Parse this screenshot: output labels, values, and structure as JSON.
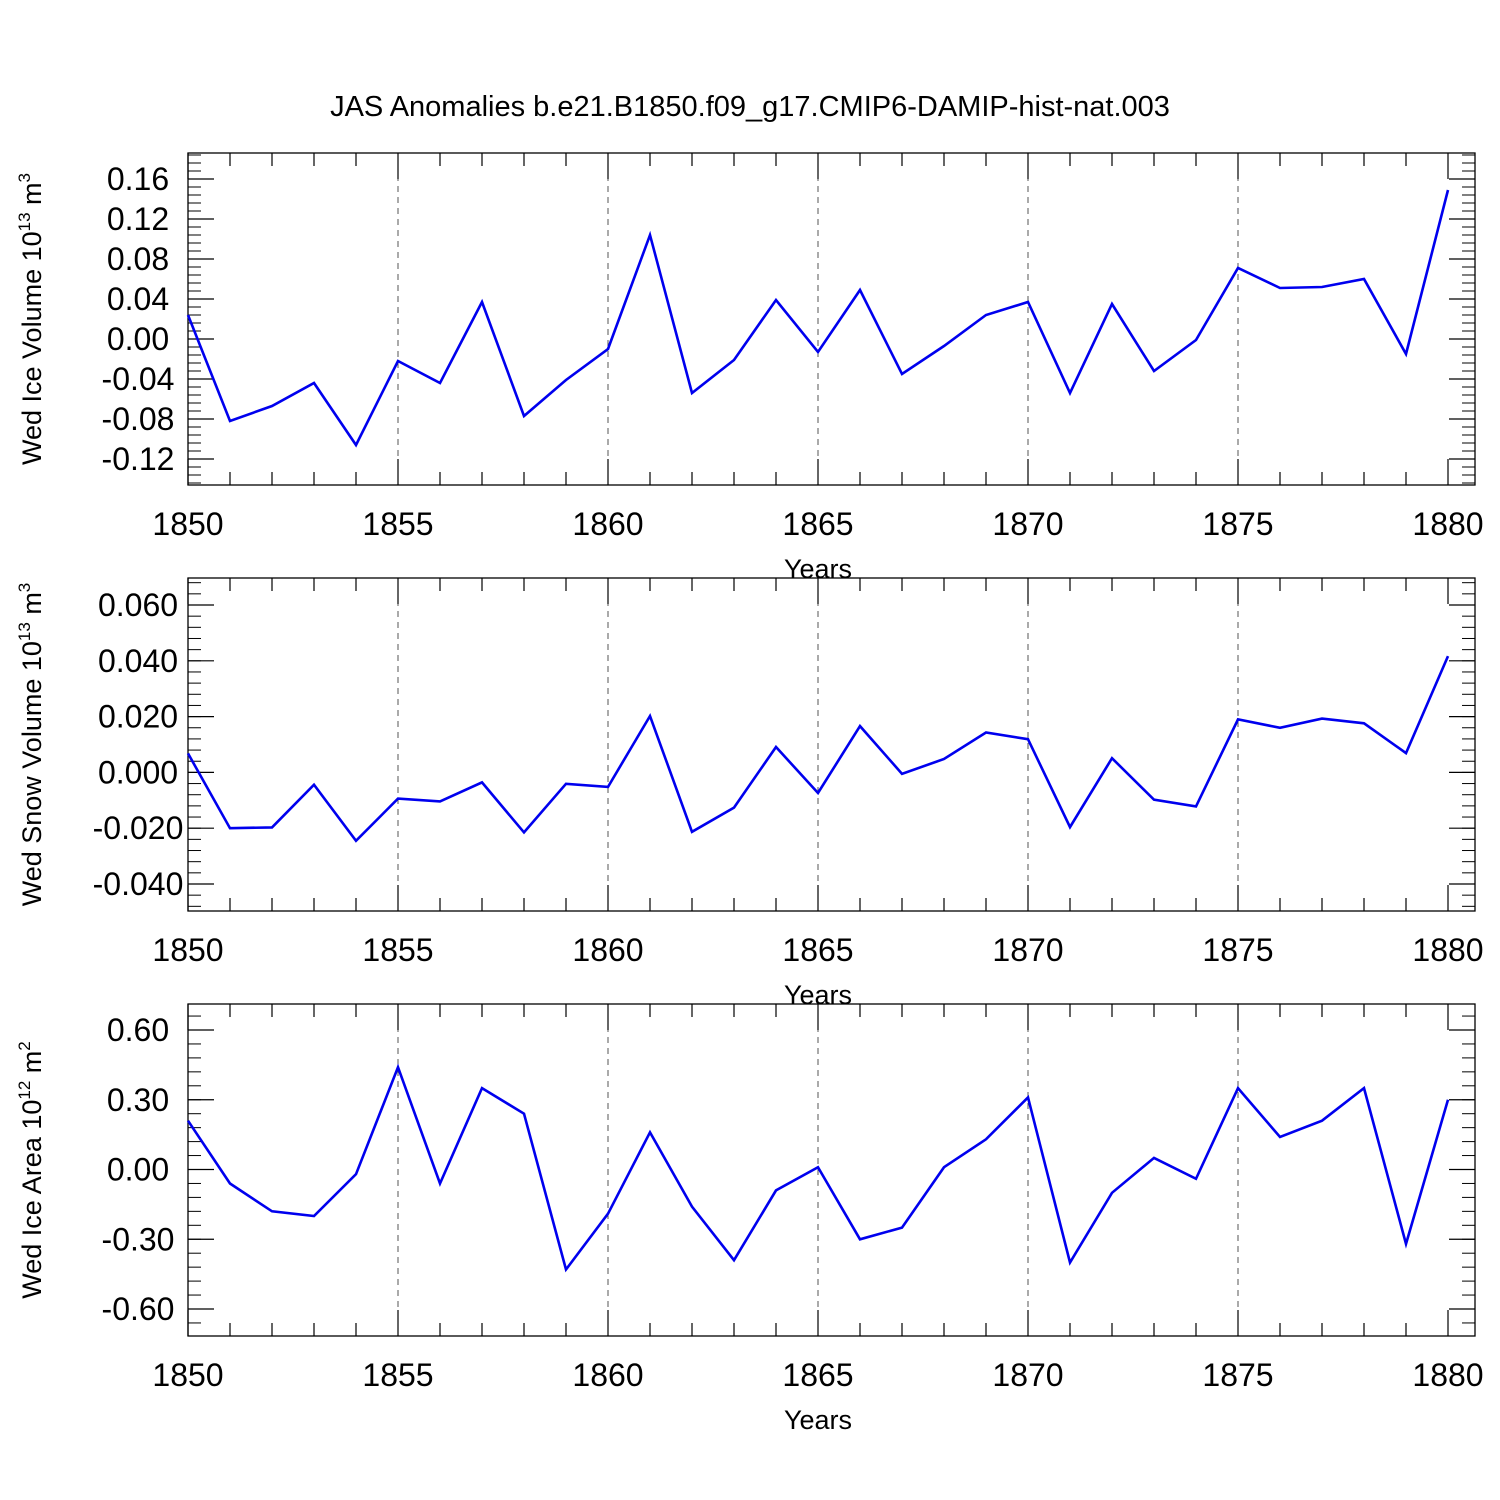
{
  "figure": {
    "title": "JAS Anomalies b.e21.B1850.f09_g17.CMIP6-DAMIP-hist-nat.003"
  },
  "colors": {
    "line": "#0000ee",
    "axes": "#000000"
  },
  "chart_data": [
    {
      "type": "line",
      "title": "",
      "xlabel": "Years",
      "ylabel": "Wed Ice Volume 10",
      "ylabel_exp": "13",
      "ylabel_unit": " m",
      "ylabel_unit_exp": "3",
      "xlim": [
        1850,
        1880
      ],
      "ylim": [
        -0.12,
        0.16
      ],
      "x_ticks": [
        1850,
        1855,
        1860,
        1865,
        1870,
        1875,
        1880
      ],
      "x_tick_labels": [
        "1850",
        "1855",
        "1860",
        "1865",
        "1870",
        "1875",
        "1880"
      ],
      "y_ticks": [
        -0.12,
        -0.08,
        -0.04,
        0.0,
        0.04,
        0.08,
        0.12,
        0.16
      ],
      "y_tick_labels": [
        "-0.12",
        "-0.08",
        "-0.04",
        "0.00",
        "0.04",
        "0.08",
        "0.12",
        "0.16"
      ],
      "grid": "vertical dashed at major x ticks",
      "legend": "none",
      "series": [
        {
          "x": [
            1850,
            1851,
            1852,
            1853,
            1854,
            1855,
            1856,
            1857,
            1858,
            1859,
            1860,
            1861,
            1862,
            1863,
            1864,
            1865,
            1866,
            1867,
            1868,
            1869,
            1870,
            1871,
            1872,
            1873,
            1874,
            1875,
            1876,
            1877,
            1878,
            1879,
            1880
          ],
          "values": [
            0.024,
            -0.082,
            -0.067,
            -0.044,
            -0.106,
            -0.022,
            -0.044,
            0.037,
            -0.077,
            -0.041,
            -0.01,
            0.104,
            -0.054,
            -0.021,
            0.039,
            -0.013,
            0.049,
            -0.035,
            -0.007,
            0.024,
            0.037,
            -0.054,
            0.035,
            -0.032,
            -0.001,
            0.071,
            0.051,
            0.052,
            0.06,
            -0.015,
            0.149
          ]
        }
      ]
    },
    {
      "type": "line",
      "title": "",
      "xlabel": "Years",
      "ylabel": "Wed Snow Volume 10",
      "ylabel_exp": "13",
      "ylabel_unit": " m",
      "ylabel_unit_exp": "3",
      "xlim": [
        1850,
        1880
      ],
      "ylim": [
        -0.04,
        0.06
      ],
      "x_ticks": [
        1850,
        1855,
        1860,
        1865,
        1870,
        1875,
        1880
      ],
      "x_tick_labels": [
        "1850",
        "1855",
        "1860",
        "1865",
        "1870",
        "1875",
        "1880"
      ],
      "y_ticks": [
        -0.04,
        -0.02,
        0.0,
        0.02,
        0.04,
        0.06
      ],
      "y_tick_labels": [
        "-0.040",
        "-0.020",
        "0.000",
        "0.020",
        "0.040",
        "0.060"
      ],
      "grid": "vertical dashed at major x ticks",
      "legend": "none",
      "series": [
        {
          "x": [
            1850,
            1851,
            1852,
            1853,
            1854,
            1855,
            1856,
            1857,
            1858,
            1859,
            1860,
            1861,
            1862,
            1863,
            1864,
            1865,
            1866,
            1867,
            1868,
            1869,
            1870,
            1871,
            1872,
            1873,
            1874,
            1875,
            1876,
            1877,
            1878,
            1879,
            1880
          ],
          "values": [
            0.0068,
            -0.02,
            -0.0197,
            -0.0044,
            -0.0245,
            -0.0094,
            -0.0104,
            -0.0036,
            -0.0215,
            -0.0041,
            -0.0052,
            0.0202,
            -0.0213,
            -0.0126,
            0.0091,
            -0.0074,
            0.0166,
            -0.0005,
            0.0048,
            0.0143,
            0.0119,
            -0.0196,
            0.0051,
            -0.0098,
            -0.0122,
            0.019,
            0.016,
            0.0193,
            0.0176,
            0.0069,
            0.0417
          ]
        }
      ]
    },
    {
      "type": "line",
      "title": "",
      "xlabel": "Years",
      "ylabel": "Wed Ice Area 10",
      "ylabel_exp": "12",
      "ylabel_unit": " m",
      "ylabel_unit_exp": "2",
      "xlim": [
        1850,
        1880
      ],
      "ylim": [
        -0.6,
        0.6
      ],
      "x_ticks": [
        1850,
        1855,
        1860,
        1865,
        1870,
        1875,
        1880
      ],
      "x_tick_labels": [
        "1850",
        "1855",
        "1860",
        "1865",
        "1870",
        "1875",
        "1880"
      ],
      "y_ticks": [
        -0.6,
        -0.3,
        0.0,
        0.3,
        0.6
      ],
      "y_tick_labels": [
        "-0.60",
        "-0.30",
        "0.00",
        "0.30",
        "0.60"
      ],
      "grid": "vertical dashed at major x ticks",
      "legend": "none",
      "series": [
        {
          "x": [
            1850,
            1851,
            1852,
            1853,
            1854,
            1855,
            1856,
            1857,
            1858,
            1859,
            1860,
            1861,
            1862,
            1863,
            1864,
            1865,
            1866,
            1867,
            1868,
            1869,
            1870,
            1871,
            1872,
            1873,
            1874,
            1875,
            1876,
            1877,
            1878,
            1879,
            1880
          ],
          "values": [
            0.21,
            -0.06,
            -0.18,
            -0.2,
            -0.02,
            0.44,
            -0.06,
            0.35,
            0.24,
            -0.43,
            -0.19,
            0.16,
            -0.16,
            -0.39,
            -0.09,
            0.01,
            -0.3,
            -0.25,
            0.01,
            0.13,
            0.31,
            -0.4,
            -0.1,
            0.05,
            -0.04,
            0.35,
            0.14,
            0.21,
            0.35,
            -0.32,
            0.3
          ]
        }
      ]
    }
  ]
}
